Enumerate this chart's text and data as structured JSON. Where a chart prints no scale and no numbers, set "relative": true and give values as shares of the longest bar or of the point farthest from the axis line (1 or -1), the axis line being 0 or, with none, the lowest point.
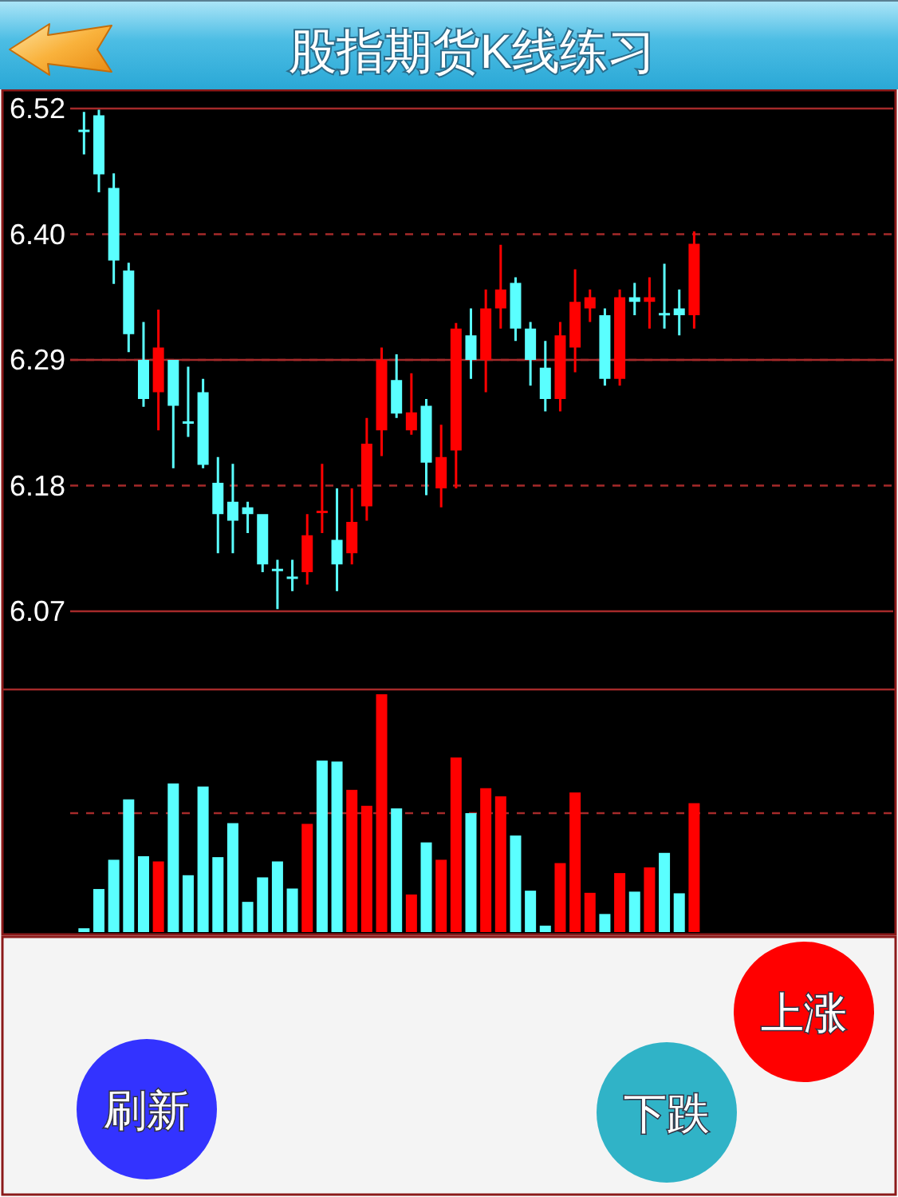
{
  "chart_data": [
    {
      "type": "candlestick",
      "title": "股指期货K线练习",
      "categories": [
        null,
        null,
        null,
        null,
        null,
        null,
        null,
        null,
        null,
        null,
        null,
        null,
        null,
        null,
        null,
        null,
        null,
        null,
        null,
        null,
        null,
        null,
        null,
        null,
        null,
        null,
        null,
        null,
        null,
        null,
        null,
        null,
        null,
        null,
        null,
        null,
        null,
        null,
        null,
        null,
        null,
        null
      ],
      "ohlc": [
        [
          6.496,
          6.512,
          6.474,
          6.494
        ],
        [
          6.509,
          6.514,
          6.44,
          6.456
        ],
        [
          6.444,
          6.457,
          6.358,
          6.379
        ],
        [
          6.37,
          6.377,
          6.297,
          6.313
        ],
        [
          6.29,
          6.324,
          6.248,
          6.255
        ],
        [
          6.261,
          6.335,
          6.227,
          6.301
        ],
        [
          6.29,
          6.29,
          6.193,
          6.249
        ],
        [
          6.235,
          6.284,
          6.221,
          6.233
        ],
        [
          6.261,
          6.273,
          6.193,
          6.196
        ],
        [
          6.18,
          6.203,
          6.117,
          6.152
        ],
        [
          6.163,
          6.197,
          6.117,
          6.146
        ],
        [
          6.158,
          6.163,
          6.135,
          6.152
        ],
        [
          6.152,
          6.152,
          6.1,
          6.107
        ],
        [
          6.103,
          6.111,
          6.067,
          6.101
        ],
        [
          6.096,
          6.111,
          6.083,
          6.095
        ],
        [
          6.1,
          6.152,
          6.089,
          6.133
        ],
        [
          6.154,
          6.197,
          6.135,
          6.155
        ],
        [
          6.129,
          6.175,
          6.083,
          6.107
        ],
        [
          6.117,
          6.175,
          6.107,
          6.145
        ],
        [
          6.159,
          6.238,
          6.146,
          6.215
        ],
        [
          6.227,
          6.301,
          6.204,
          6.29
        ],
        [
          6.272,
          6.295,
          6.238,
          6.242
        ],
        [
          6.227,
          6.278,
          6.223,
          6.243
        ],
        [
          6.249,
          6.255,
          6.169,
          6.198
        ],
        [
          6.175,
          6.232,
          6.158,
          6.203
        ],
        [
          6.209,
          6.323,
          6.175,
          6.318
        ],
        [
          6.312,
          6.336,
          6.273,
          6.29
        ],
        [
          6.29,
          6.353,
          6.261,
          6.336
        ],
        [
          6.336,
          6.393,
          6.318,
          6.353
        ],
        [
          6.359,
          6.364,
          6.307,
          6.318
        ],
        [
          6.318,
          6.324,
          6.267,
          6.29
        ],
        [
          6.283,
          6.307,
          6.244,
          6.255
        ],
        [
          6.255,
          6.324,
          6.244,
          6.312
        ],
        [
          6.301,
          6.371,
          6.279,
          6.342
        ],
        [
          6.336,
          6.353,
          6.324,
          6.346
        ],
        [
          6.33,
          6.336,
          6.267,
          6.273
        ],
        [
          6.273,
          6.353,
          6.267,
          6.346
        ],
        [
          6.346,
          6.359,
          6.33,
          6.342
        ],
        [
          6.342,
          6.364,
          6.318,
          6.346
        ],
        [
          6.332,
          6.376,
          6.318,
          6.331
        ],
        [
          6.336,
          6.353,
          6.312,
          6.33
        ],
        [
          6.33,
          6.405,
          6.318,
          6.394
        ]
      ],
      "colors": [
        "#5affff",
        "#5affff",
        "#5affff",
        "#5affff",
        "#5affff",
        "#ff0000",
        "#5affff",
        "#5affff",
        "#5affff",
        "#5affff",
        "#5affff",
        "#5affff",
        "#5affff",
        "#5affff",
        "#5affff",
        "#ff0000",
        "#ff0000",
        "#5affff",
        "#ff0000",
        "#ff0000",
        "#ff0000",
        "#5affff",
        "#ff0000",
        "#5affff",
        "#ff0000",
        "#ff0000",
        "#5affff",
        "#ff0000",
        "#ff0000",
        "#5affff",
        "#5affff",
        "#5affff",
        "#ff0000",
        "#ff0000",
        "#ff0000",
        "#5affff",
        "#ff0000",
        "#5affff",
        "#ff0000",
        "#5affff",
        "#5affff",
        "#ff0000"
      ],
      "ylim": [
        6.065,
        6.515
      ],
      "yticks": [
        {
          "value": 6.065,
          "label": "6.07"
        },
        {
          "value": 6.1775,
          "label": "6.18"
        },
        6.29,
        {
          "value": 6.4025,
          "label": "6.40"
        },
        {
          "value": 6.515,
          "label": "6.52"
        }
      ],
      "grid": "y",
      "tick_labels": "y",
      "ref_lines": [
        {
          "axis": "y",
          "value": 6.29,
          "color": "#a52a2a",
          "line_style": "solid"
        }
      ]
    },
    {
      "type": "bar",
      "relative": true,
      "categories": [
        null,
        null,
        null,
        null,
        null,
        null,
        null,
        null,
        null,
        null,
        null,
        null,
        null,
        null,
        null,
        null,
        null,
        null,
        null,
        null,
        null,
        null,
        null,
        null,
        null,
        null,
        null,
        null,
        null,
        null,
        null,
        null,
        null,
        null,
        null,
        null,
        null,
        null,
        null,
        null,
        null,
        null
      ],
      "values": [
        0.016,
        0.181,
        0.304,
        0.558,
        0.319,
        0.297,
        0.625,
        0.239,
        0.612,
        0.315,
        0.458,
        0.127,
        0.23,
        0.297,
        0.183,
        0.455,
        0.721,
        0.717,
        0.598,
        0.531,
        1,
        0.52,
        0.158,
        0.377,
        0.304,
        0.734,
        0.5,
        0.605,
        0.571,
        0.406,
        0.174,
        0.027,
        0.29,
        0.587,
        0.165,
        0.076,
        0.248,
        0.17,
        0.272,
        0.333,
        0.163,
        0.542
      ],
      "colors": [
        "#5affff",
        "#5affff",
        "#5affff",
        "#5affff",
        "#5affff",
        "#ff0000",
        "#5affff",
        "#5affff",
        "#5affff",
        "#5affff",
        "#5affff",
        "#5affff",
        "#5affff",
        "#5affff",
        "#5affff",
        "#ff0000",
        "#5affff",
        "#5affff",
        "#ff0000",
        "#ff0000",
        "#ff0000",
        "#5affff",
        "#ff0000",
        "#5affff",
        "#ff0000",
        "#ff0000",
        "#5affff",
        "#ff0000",
        "#ff0000",
        "#5affff",
        "#5affff",
        "#5affff",
        "#ff0000",
        "#ff0000",
        "#ff0000",
        "#5affff",
        "#ff0000",
        "#5affff",
        "#ff0000",
        "#5affff",
        "#5affff",
        "#ff0000"
      ],
      "ref_lines": [
        {
          "axis": "y",
          "value": 0.5,
          "color": "#a52a2a",
          "line_style": "dashed"
        }
      ]
    },
    {
      "type": "other",
      "annotations": [
        "上涨",
        "下跌",
        "刷新"
      ],
      "colors": [
        "#ff0000",
        "#30b3c7",
        "#3333ff"
      ]
    }
  ]
}
